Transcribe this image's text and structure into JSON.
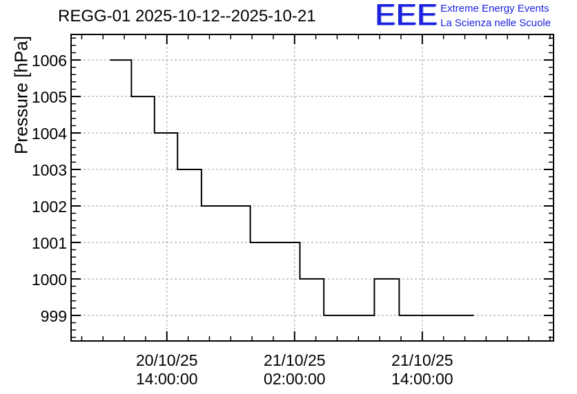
{
  "chart_data": {
    "type": "line",
    "step": true,
    "title": "REGG-01 2025-10-12--2025-10-21",
    "ylabel": "Pressure [hPa]",
    "xlabel": "",
    "ylim": [
      998.3,
      1006.7
    ],
    "xlim": [
      "2025-10-20T05:00:00",
      "2025-10-22T02:20:00"
    ],
    "y_ticks": [
      999,
      1000,
      1001,
      1002,
      1003,
      1004,
      1005,
      1006
    ],
    "x_ticks": [
      {
        "date": "20/10/25",
        "time": "14:00:00",
        "x": "2025-10-20T14:00:00"
      },
      {
        "date": "21/10/25",
        "time": "02:00:00",
        "x": "2025-10-21T02:00:00"
      },
      {
        "date": "21/10/25",
        "time": "14:00:00",
        "x": "2025-10-21T14:00:00"
      }
    ],
    "grid": true,
    "series": [
      {
        "color": "#000000",
        "points": [
          {
            "x": "2025-10-20T08:40:00",
            "y": 1006
          },
          {
            "x": "2025-10-20T10:40:00",
            "y": 1006
          },
          {
            "x": "2025-10-20T10:40:00",
            "y": 1005
          },
          {
            "x": "2025-10-20T12:50:00",
            "y": 1005
          },
          {
            "x": "2025-10-20T12:50:00",
            "y": 1004
          },
          {
            "x": "2025-10-20T15:00:00",
            "y": 1004
          },
          {
            "x": "2025-10-20T15:00:00",
            "y": 1003
          },
          {
            "x": "2025-10-20T17:15:00",
            "y": 1003
          },
          {
            "x": "2025-10-20T17:15:00",
            "y": 1002
          },
          {
            "x": "2025-10-20T21:50:00",
            "y": 1002
          },
          {
            "x": "2025-10-20T21:50:00",
            "y": 1001
          },
          {
            "x": "2025-10-21T02:30:00",
            "y": 1001
          },
          {
            "x": "2025-10-21T02:30:00",
            "y": 1000
          },
          {
            "x": "2025-10-21T04:45:00",
            "y": 1000
          },
          {
            "x": "2025-10-21T04:45:00",
            "y": 999
          },
          {
            "x": "2025-10-21T09:30:00",
            "y": 999
          },
          {
            "x": "2025-10-21T09:30:00",
            "y": 1000
          },
          {
            "x": "2025-10-21T11:50:00",
            "y": 1000
          },
          {
            "x": "2025-10-21T11:50:00",
            "y": 999
          },
          {
            "x": "2025-10-21T18:50:00",
            "y": 999
          }
        ]
      }
    ]
  },
  "logo": {
    "mark": "EEE",
    "line1": "Extreme Energy Events",
    "line2": "La Scienza nelle Scuole",
    "color": "#1a22e0"
  }
}
